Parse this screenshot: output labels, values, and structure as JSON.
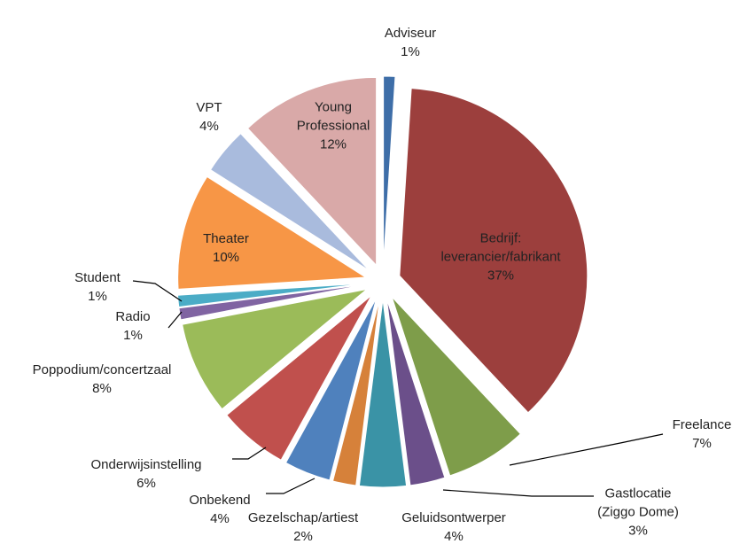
{
  "chart_data": {
    "type": "pie",
    "categories": [
      "Adviseur",
      "Bedrijf:\nleverancier/fabrikant",
      "Freelance",
      "Gastlocatie\n(Ziggo Dome)",
      "Geluidsontwerper",
      "Gezelschap/artiest",
      "Onbekend",
      "Onderwijsinstelling",
      "Poppodium/concertzaal",
      "Radio",
      "Student",
      "Theater",
      "VPT",
      "Young\nProfessional"
    ],
    "values": [
      1,
      37,
      7,
      3,
      4,
      2,
      4,
      6,
      8,
      1,
      1,
      10,
      4,
      12
    ],
    "value_labels": [
      "1%",
      "37%",
      "7%",
      "3%",
      "4%",
      "2%",
      "4%",
      "6%",
      "8%",
      "1%",
      "1%",
      "10%",
      "4%",
      "12%"
    ],
    "colors": [
      "#3e6ea8",
      "#9c3f3d",
      "#7e9d4a",
      "#6b4f8a",
      "#3a93a6",
      "#d6813a",
      "#4f81bd",
      "#c0504d",
      "#9bbb59",
      "#8064a2",
      "#4bacc6",
      "#f79646",
      "#a9bbdd",
      "#d9a9a8"
    ]
  }
}
